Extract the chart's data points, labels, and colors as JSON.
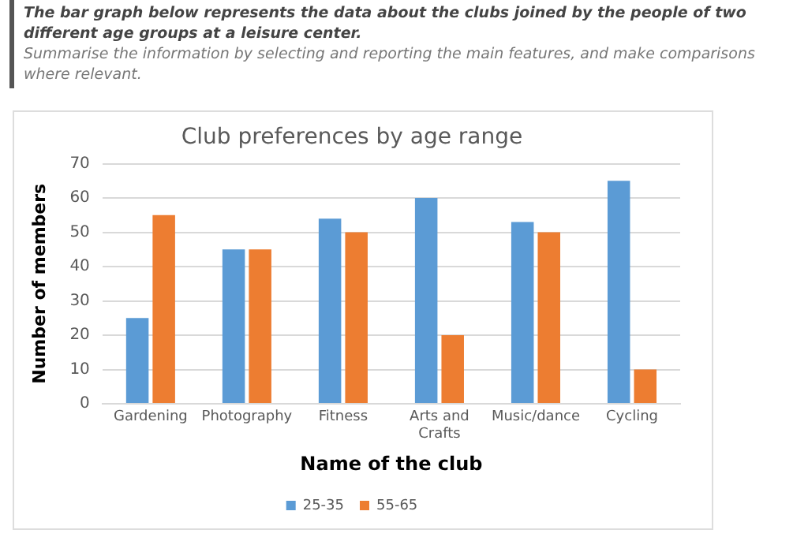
{
  "chart_data": {
    "type": "bar",
    "title": "Club preferences by age range",
    "xlabel": "Name of the club",
    "ylabel": "Number of members",
    "annotations": [
      "The bar graph below represents the data about the clubs joined by the people of two different age groups at a leisure center.",
      "Summarise the information by selecting and reporting the main features, and make comparisons where relevant."
    ],
    "categories": [
      "Gardening",
      "Photography",
      "Fitness",
      "Arts and Crafts",
      "Music/dance",
      "Cycling"
    ],
    "series": [
      {
        "name": "25-35",
        "color": "#5b9bd5",
        "values": [
          25,
          45,
          54,
          60,
          53,
          65
        ]
      },
      {
        "name": "55-65",
        "color": "#ed7d31",
        "values": [
          55,
          45,
          50,
          20,
          50,
          10
        ]
      }
    ],
    "ylim": [
      0,
      70
    ],
    "yticks": [
      0,
      10,
      20,
      30,
      40,
      50,
      60,
      70
    ],
    "grid": "y",
    "legend": "bottom"
  }
}
